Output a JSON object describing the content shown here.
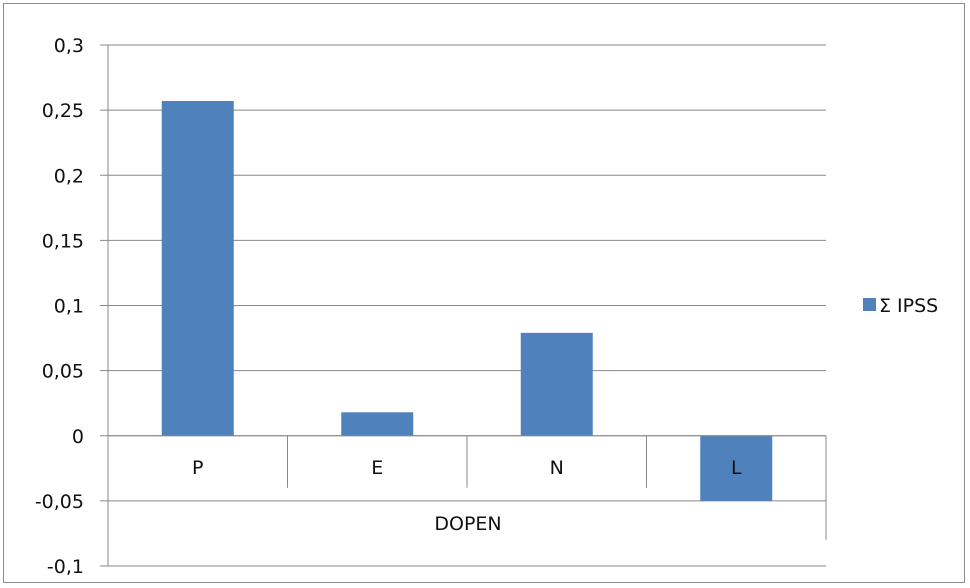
{
  "chart_data": {
    "type": "bar",
    "categories": [
      "P",
      "E",
      "N",
      "L"
    ],
    "group_label": "DOPEN",
    "series": [
      {
        "name": "Σ IPSS",
        "values": [
          0.257,
          0.018,
          0.079,
          -0.05
        ]
      }
    ],
    "ylim": [
      -0.1,
      0.3
    ],
    "yticks": [
      -0.1,
      -0.05,
      0,
      0.05,
      0.1,
      0.15,
      0.2,
      0.25,
      0.3
    ],
    "ytick_labels": [
      "-0,1",
      "-0,05",
      "0",
      "0,05",
      "0,1",
      "0,15",
      "0,2",
      "0,25",
      "0,3"
    ],
    "grid": true,
    "legend_position": "right",
    "bar_color": "#4f81bd",
    "grid_color": "#888888"
  }
}
